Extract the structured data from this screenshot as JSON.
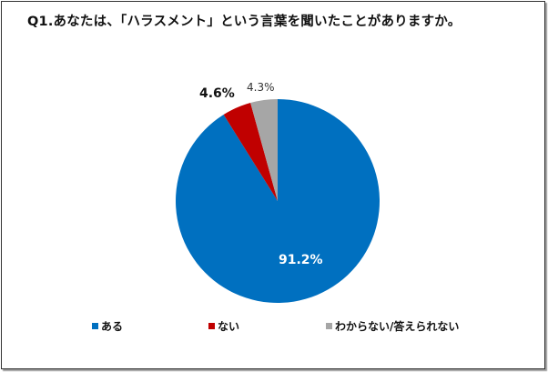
{
  "chart_data": {
    "type": "pie",
    "title": "Q1.あなたは、「ハラスメント」という言葉を聞いたことがありますか。",
    "categories": [
      "ある",
      "ない",
      "わからない/答えられない"
    ],
    "values": [
      91.2,
      4.6,
      4.3
    ],
    "colors": [
      "#0070c0",
      "#c00000",
      "#a6a6a6"
    ],
    "data_labels": [
      "91.2%",
      "4.6%",
      "4.3%"
    ],
    "start_angle": "12 o'clock",
    "direction": "clockwise",
    "legend_position": "bottom"
  },
  "title": "Q1.あなたは、「ハラスメント」という言葉を聞いたことがありますか。",
  "labels": {
    "aru": "91.2%",
    "nai": "4.6%",
    "wakaranai": "4.3%"
  },
  "legend": [
    {
      "label": "ある",
      "color": "#0070c0"
    },
    {
      "label": "ない",
      "color": "#c00000"
    },
    {
      "label": "わからない/答えられない",
      "color": "#a6a6a6"
    }
  ]
}
